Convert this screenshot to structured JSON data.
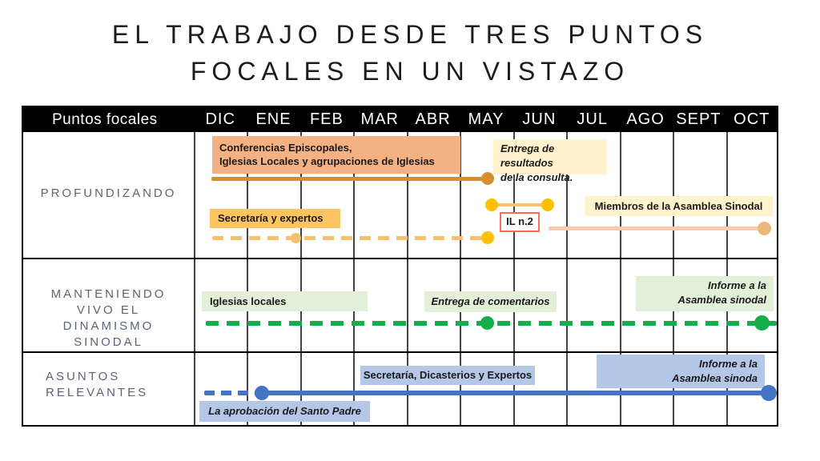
{
  "title": {
    "text": "EL TRABAJO DESDE TRES PUNTOS\nFOCALES EN UN VISTAZO"
  },
  "header": {
    "label": "Puntos focales",
    "months": [
      "DIC",
      "ENE",
      "FEB",
      "MAR",
      "ABR",
      "MAY",
      "JUN",
      "JUL",
      "AGO",
      "SEPT",
      "OCT"
    ]
  },
  "colors": {
    "header_bg": "#000000",
    "header_text": "#FFFFFF",
    "row_label_text": "#5B6575",
    "label_text": "#1A1A1A",
    "grid_line": "#434343",
    "salmon_box": "#F4B183",
    "orange_line": "#D68E2F",
    "gold_box": "#FEC463",
    "gold_dot": "#FFC000",
    "light_gold_line": "#F8BF6C",
    "cream_box": "#FFF2CC",
    "peach_line": "#F8CBAD",
    "peach_dot": "#E9B87A",
    "green_line": "#13AE4B",
    "light_green_box": "#E2EFD9",
    "blue_line": "#4472C4",
    "light_blue_box": "#B4C7E7",
    "il_border": "#FF6A5E"
  },
  "rows": [
    {
      "name": "PROFUNDIZANDO",
      "labels": {
        "conferencias": "Conferencias Episcopales,\nIglesias Locales y agrupaciones de Iglesias",
        "entrega_resultados": "Entrega de resultados\nde la consulta.",
        "secretaria": "Secretaría y expertos",
        "il": "IL n.2",
        "miembros": "Miembros de la Asamblea Sinodal"
      },
      "tracks": [
        {
          "group": "Conferencias Episcopales, Iglesias Locales y agrupaciones de Iglesias",
          "style": "solid",
          "color_key": "orange_line",
          "from": "DIC",
          "to": "MAY",
          "dots": [
            "MAY"
          ],
          "note": "Entrega de resultados de la consulta."
        },
        {
          "group": "Secretaría y expertos",
          "style": "dashed",
          "color_key": "light_gold_line",
          "from": "DIC",
          "to": "MAY",
          "dots": [
            "FEB",
            "MAY"
          ]
        },
        {
          "group": "IL n.2",
          "style": "solid",
          "color_key": "gold_dot",
          "from": "MAY",
          "to": "JUN",
          "dots": [
            "MAY",
            "JUN"
          ]
        },
        {
          "group": "Miembros de la Asamblea Sinodal",
          "style": "solid",
          "color_key": "peach_line",
          "from": "JUN",
          "to": "OCT",
          "dots": [
            "OCT"
          ]
        }
      ]
    },
    {
      "name": "MANTENIENDO\nVIVO EL\nDINAMISMO\nSINODAL",
      "labels": {
        "iglesias": "Iglesias locales",
        "comentarios": "Entrega de comentarios",
        "informe": "Informe a la\nAsamblea sinodal"
      },
      "tracks": [
        {
          "group": "Iglesias locales",
          "style": "dashed",
          "color_key": "green_line",
          "from": "DIC",
          "to": "OCT",
          "dots": [
            "MAY",
            "OCT"
          ],
          "notes": [
            "Entrega de comentarios",
            "Informe a la Asamblea sinodal"
          ]
        }
      ]
    },
    {
      "name": "ASUNTOS\nRELEVANTES",
      "labels": {
        "secretaria": "Secretaría, Dicasterios y Expertos",
        "informe": "Informe a la\nAsamblea sinoda",
        "aprobacion": "La aprobación del Santo Padre"
      },
      "tracks": [
        {
          "group": "Secretaría, Dicasterios y Expertos",
          "style": "dashed-then-solid",
          "color_key": "blue_line",
          "from": "DIC",
          "to": "OCT",
          "dots": [
            "ENE",
            "OCT"
          ],
          "notes": [
            "La aprobación del Santo Padre",
            "Informe a la Asamblea sinoda"
          ]
        }
      ]
    }
  ]
}
